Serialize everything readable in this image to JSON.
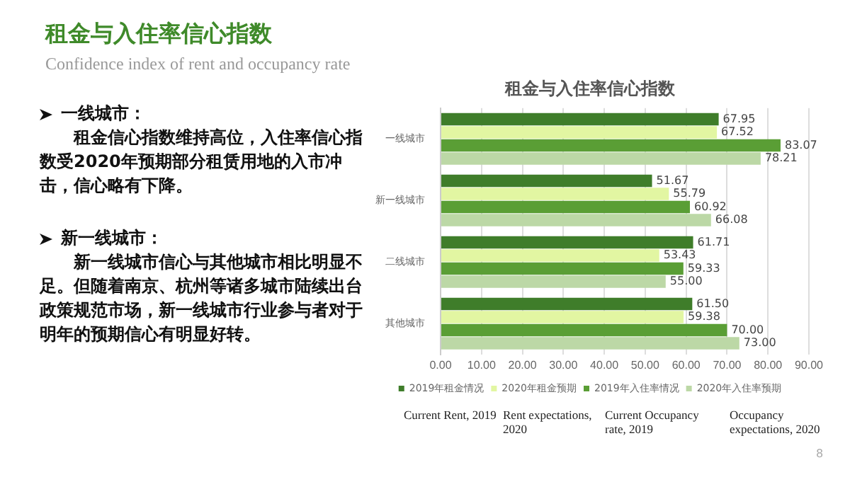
{
  "chart_data": {
    "type": "bar",
    "orientation": "horizontal",
    "title": "租金与入住率信心指数",
    "subtitle": "Confidence index of rent and occupancy rate",
    "categories": [
      "一线城市",
      "新一线城市",
      "二线城市",
      "其他城市"
    ],
    "series": [
      {
        "name": "2019年租金情况",
        "color": "#3f7d2a",
        "values": [
          67.95,
          51.67,
          61.71,
          61.5
        ],
        "value_labels": [
          "67.95",
          "51.67",
          "61.71",
          "61.50"
        ]
      },
      {
        "name": "2020年租金预期",
        "color": "#e2f6a2",
        "values": [
          67.52,
          55.79,
          53.43,
          59.38
        ],
        "value_labels": [
          "67.52",
          "55.79",
          "53.43",
          "59.38"
        ]
      },
      {
        "name": "2019年入住率情况",
        "color": "#5a9e35",
        "values": [
          83.07,
          60.92,
          59.33,
          70
        ],
        "value_labels": [
          "83.07",
          "60.92",
          "59.33",
          "70.00"
        ]
      },
      {
        "name": "2020年入住率预期",
        "color": "#bcd8a6",
        "values": [
          78.21,
          66.08,
          55,
          73
        ],
        "value_labels": [
          "78.21",
          "66.08",
          "55.00",
          "73.00"
        ]
      }
    ],
    "xlim": [
      0,
      90
    ],
    "xticks": [
      {
        "value": 0,
        "label": "0.00"
      },
      {
        "value": 10,
        "label": "10.00"
      },
      {
        "value": 20,
        "label": "20.00"
      },
      {
        "value": 30,
        "label": "30.00"
      },
      {
        "value": 40,
        "label": "40.00"
      },
      {
        "value": 50,
        "label": "50.00"
      },
      {
        "value": 60,
        "label": "60.00"
      },
      {
        "value": 70,
        "label": "70.00"
      },
      {
        "value": 80,
        "label": "80.00"
      },
      {
        "value": 90,
        "label": "90.00"
      }
    ],
    "grid": "x",
    "legend": "bottom",
    "annotations": [
      "租金与入住率信心指数",
      "一线城市：",
      "租金信心指数维持高位，入住率信心指数受2020年预期部分租赁用地的入市冲击，信心略有下降。",
      "新一线城市：",
      "新一线城市信心与其他城市相比明显不足。但随着南京、杭州等诸多城市陆续出台政策规范市场，新一线城市行业参与者对于明年的预期信心有明显好转。",
      "Current Rent, 2019",
      "Rent expectations, 2020",
      "Current Occupancy rate, 2019",
      "Occupancy expectations, 2020",
      "8"
    ]
  }
}
